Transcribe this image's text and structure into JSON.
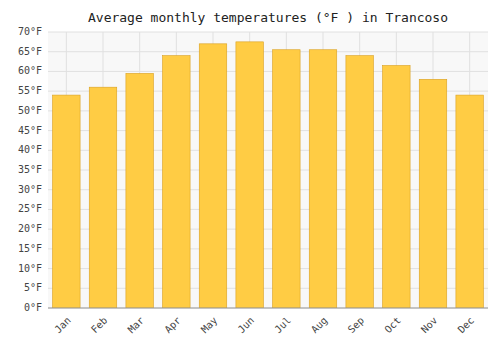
{
  "chart_data": {
    "type": "bar",
    "title": "Average monthly temperatures (°F ) in Trancoso",
    "categories": [
      "Jan",
      "Feb",
      "Mar",
      "Apr",
      "May",
      "Jun",
      "Jul",
      "Aug",
      "Sep",
      "Oct",
      "Nov",
      "Dec"
    ],
    "values": [
      54,
      56,
      59.5,
      64,
      67,
      67.5,
      65.5,
      65.5,
      64,
      61.5,
      58,
      54
    ],
    "color": "#FFCC44",
    "ylim": [
      0,
      70
    ],
    "yticks": [
      {
        "value": 0,
        "label": "0°F"
      },
      {
        "value": 5,
        "label": "5°F"
      },
      {
        "value": 10,
        "label": "10°F"
      },
      {
        "value": 15,
        "label": "15°F"
      },
      {
        "value": 20,
        "label": "20°F"
      },
      {
        "value": 25,
        "label": "25°F"
      },
      {
        "value": 30,
        "label": "30°F"
      },
      {
        "value": 35,
        "label": "35°F"
      },
      {
        "value": 40,
        "label": "40°F"
      },
      {
        "value": 45,
        "label": "45°F"
      },
      {
        "value": 50,
        "label": "50°F"
      },
      {
        "value": 55,
        "label": "55°F"
      },
      {
        "value": 60,
        "label": "60°F"
      },
      {
        "value": 65,
        "label": "65°F"
      },
      {
        "value": 70,
        "label": "70°F"
      }
    ],
    "grid": true
  }
}
